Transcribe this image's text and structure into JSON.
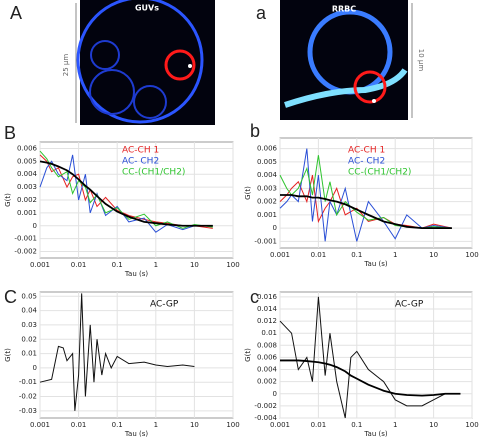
{
  "images": [
    {
      "label": "A",
      "title": "GUVs",
      "scale": "25 µm"
    },
    {
      "label": "a",
      "title": "RRBC",
      "scale": "10 µm"
    }
  ],
  "plots": [
    {
      "label": "B",
      "type": "line",
      "xlabel": "Tau (s)",
      "ylabel": "G(t)",
      "xscale": "log",
      "xlim": [
        0.001,
        100
      ],
      "xticks": [
        0.001,
        0.01,
        0.1,
        1,
        10,
        100
      ],
      "ylim": [
        -0.0025,
        0.0065
      ],
      "yticks": [
        0.006,
        0.005,
        0.004,
        0.003,
        0.002,
        0.001,
        0,
        -0.001,
        -0.002
      ],
      "grid": true,
      "x": [
        0.001,
        0.0015,
        0.002,
        0.003,
        0.005,
        0.007,
        0.01,
        0.015,
        0.02,
        0.03,
        0.05,
        0.1,
        0.2,
        0.5,
        1,
        2,
        5,
        10,
        30
      ],
      "series": [
        {
          "name": "AC-CH 1",
          "color": "#e52222",
          "values": [
            0.0055,
            0.005,
            0.0042,
            0.0045,
            0.003,
            0.0038,
            0.004,
            0.002,
            0.0028,
            0.0015,
            0.0022,
            0.0012,
            0.0008,
            0.0005,
            0.0003,
            0.0002,
            0,
            0,
            -0.0002
          ]
        },
        {
          "name": "AC- CH2",
          "color": "#2a4fd6",
          "values": [
            0.003,
            0.0045,
            0.005,
            0.004,
            0.0035,
            0.0055,
            0.002,
            0.004,
            0.001,
            0.0025,
            0.0008,
            0.0015,
            0.0003,
            0.0006,
            -0.0005,
            0.0001,
            -0.0003,
            0,
            0
          ]
        },
        {
          "name": "CC-(CH1/CH2)",
          "color": "#2fc42f",
          "values": [
            0.0058,
            0.0052,
            0.0045,
            0.0038,
            0.0042,
            0.0025,
            0.0035,
            0.003,
            0.0018,
            0.0024,
            0.001,
            0.0014,
            0.0005,
            0.0009,
            0,
            0.0003,
            -0.0002,
            0.0001,
            -0.0001
          ]
        }
      ],
      "fit_values": [
        0.005,
        0.0049,
        0.0048,
        0.0046,
        0.0043,
        0.004,
        0.0036,
        0.0031,
        0.0028,
        0.0023,
        0.0017,
        0.0011,
        0.0007,
        0.0003,
        0.0002,
        0.0001,
        0,
        0,
        0
      ]
    },
    {
      "label": "b",
      "type": "line",
      "xlabel": "Tau (s)",
      "ylabel": "G(t)",
      "xscale": "log",
      "xlim": [
        0.001,
        100
      ],
      "xticks": [
        0.001,
        0.01,
        0.1,
        1,
        10,
        100
      ],
      "ylim": [
        -0.0015,
        0.0068
      ],
      "yticks": [
        0.006,
        0.005,
        0.004,
        0.003,
        0.002,
        0.001,
        0,
        -0.001
      ],
      "grid": true,
      "x": [
        0.001,
        0.0015,
        0.002,
        0.003,
        0.005,
        0.007,
        0.01,
        0.015,
        0.02,
        0.03,
        0.05,
        0.1,
        0.2,
        0.5,
        1,
        2,
        5,
        10,
        30
      ],
      "series": [
        {
          "name": "AC-CH 1",
          "color": "#e52222",
          "values": [
            0.002,
            0.0025,
            0.003,
            0.0035,
            0.002,
            0.004,
            0.0005,
            0.0015,
            0.002,
            0.003,
            0.001,
            0.0015,
            0.0005,
            0.0008,
            0.0003,
            0.0002,
            0,
            0.0003,
            0
          ]
        },
        {
          "name": "AC- CH2",
          "color": "#2a4fd6",
          "values": [
            0.0015,
            0.002,
            0.0025,
            0.002,
            0.006,
            0.0005,
            0.004,
            -0.001,
            0.002,
            0.001,
            0.003,
            -0.001,
            0.002,
            0.0005,
            -0.0008,
            0.001,
            0,
            0.0002,
            0
          ]
        },
        {
          "name": "CC-(CH1/CH2)",
          "color": "#2fc42f",
          "values": [
            0.004,
            0.003,
            0.0025,
            0.003,
            0.0045,
            0.0025,
            0.0055,
            0.002,
            0.0035,
            0.001,
            0.002,
            0.0012,
            0.0006,
            0.0008,
            0.0002,
            0.0001,
            0,
            0.0001,
            0
          ]
        }
      ],
      "fit_values": [
        0.0025,
        0.0025,
        0.0025,
        0.0024,
        0.0024,
        0.0023,
        0.0023,
        0.0022,
        0.0021,
        0.002,
        0.0018,
        0.0014,
        0.001,
        0.0005,
        0.0003,
        0.0001,
        0,
        0,
        0
      ]
    },
    {
      "label": "C",
      "type": "line",
      "xlabel": "Tau (s)",
      "ylabel": "G(t)",
      "xscale": "log",
      "xlim": [
        0.001,
        100
      ],
      "xticks": [
        0.001,
        0.01,
        0.1,
        1,
        10,
        100
      ],
      "ylim": [
        -0.035,
        0.053
      ],
      "yticks": [
        0.05,
        0.04,
        0.03,
        0.02,
        0.01,
        0,
        -0.01,
        -0.02,
        -0.03
      ],
      "grid": true,
      "x": [
        0.001,
        0.002,
        0.003,
        0.004,
        0.005,
        0.007,
        0.008,
        0.01,
        0.012,
        0.015,
        0.02,
        0.025,
        0.03,
        0.04,
        0.05,
        0.07,
        0.1,
        0.2,
        0.5,
        1,
        2,
        5,
        10
      ],
      "series": [
        {
          "name": "AC-GP",
          "color": "#111111",
          "values": [
            -0.01,
            -0.008,
            0.015,
            0.014,
            0.005,
            0.01,
            -0.03,
            -0.005,
            0.052,
            -0.02,
            0.03,
            -0.01,
            0.02,
            -0.005,
            0.01,
            0,
            0.008,
            0.003,
            0.004,
            0.002,
            0.001,
            0.002,
            0.001
          ]
        }
      ]
    },
    {
      "label": "c",
      "type": "line",
      "xlabel": "Tau (s)",
      "ylabel": "G(t)",
      "xscale": "log",
      "xlim": [
        0.001,
        100
      ],
      "xticks": [
        0.001,
        0.01,
        0.1,
        1,
        10,
        100
      ],
      "ylim": [
        -0.004,
        0.0168
      ],
      "yticks": [
        0.016,
        0.014,
        0.012,
        0.01,
        0.008,
        0.006,
        0.004,
        0.002,
        0,
        -0.002,
        -0.004
      ],
      "grid": true,
      "x": [
        0.001,
        0.002,
        0.003,
        0.005,
        0.007,
        0.01,
        0.015,
        0.02,
        0.03,
        0.05,
        0.07,
        0.1,
        0.2,
        0.5,
        1,
        2,
        5,
        10,
        20,
        50
      ],
      "series": [
        {
          "name": "AC-GP",
          "color": "#111111",
          "values": [
            0.012,
            0.01,
            0.004,
            0.006,
            0.002,
            0.016,
            0.003,
            0.01,
            0.002,
            -0.004,
            0.006,
            0.007,
            0.004,
            0.002,
            -0.001,
            -0.002,
            -0.002,
            -0.001,
            0,
            0
          ]
        }
      ],
      "fit_values": [
        0.0055,
        0.0055,
        0.0055,
        0.0054,
        0.0053,
        0.0052,
        0.005,
        0.0048,
        0.0044,
        0.0037,
        0.003,
        0.0025,
        0.0015,
        0.0005,
        0,
        -0.0002,
        -0.0003,
        -0.0002,
        0,
        0
      ]
    }
  ]
}
